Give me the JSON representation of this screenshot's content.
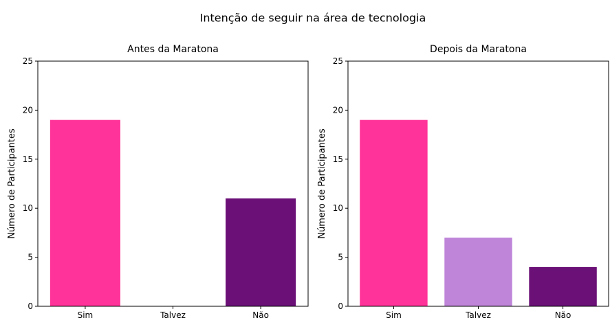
{
  "title": "Intenção de seguir na área de tecnologia",
  "chart_data": [
    {
      "type": "bar",
      "title": "Antes da Maratona",
      "ylabel": "Número de Participantes",
      "categories": [
        "Sim",
        "Talvez",
        "Não"
      ],
      "values": [
        19,
        0,
        11
      ],
      "colors": [
        "#ff3399",
        "#bf85d9",
        "#6b1077"
      ],
      "ylim": [
        0,
        25
      ],
      "yticks": [
        0,
        5,
        10,
        15,
        20,
        25
      ]
    },
    {
      "type": "bar",
      "title": "Depois da Maratona",
      "ylabel": "Número de Participantes",
      "categories": [
        "Sim",
        "Talvez",
        "Não"
      ],
      "values": [
        19,
        7,
        4
      ],
      "colors": [
        "#ff3399",
        "#bf85d9",
        "#6b1077"
      ],
      "ylim": [
        0,
        25
      ],
      "yticks": [
        0,
        5,
        10,
        15,
        20,
        25
      ]
    }
  ]
}
